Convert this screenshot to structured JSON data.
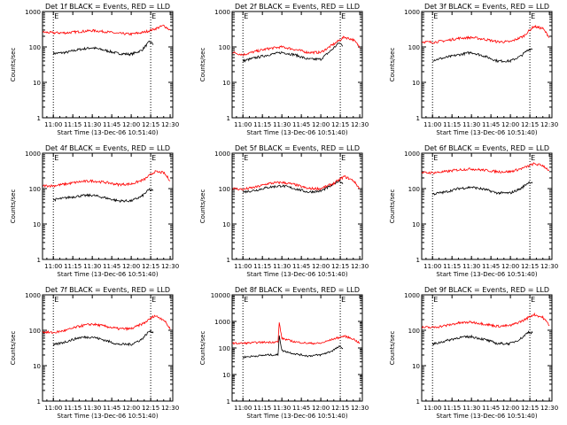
{
  "figure": {
    "x_tick_labels": [
      "11:00",
      "11:15",
      "11:30",
      "11:45",
      "12:00",
      "12:15",
      "12:30"
    ],
    "xlabel": "Start Time (13-Dec-06 10:51:40)",
    "ylabel": "Counts/sec",
    "marker_labels": [
      "E",
      "E"
    ],
    "colors": {
      "events": "#000000",
      "lld": "#ff0000",
      "axes": "#000000"
    }
  },
  "chart_data": [
    {
      "type": "line",
      "title": "Det 1f BLACK = Events, RED = LLD",
      "xlabel": "Start Time (13-Dec-06 10:51:40)",
      "ylabel": "Counts/sec",
      "y_scale": "log",
      "ylim": [
        1,
        1000
      ],
      "y_ticks": [
        1,
        10,
        100,
        1000
      ],
      "y_tick_labels": [
        "1",
        "10",
        "100",
        "1000"
      ],
      "xlim": [
        "10:51:40",
        "12:32:00"
      ],
      "marker_times": [
        "11:00",
        "12:15"
      ],
      "series": [
        {
          "name": "BLACK = Events",
          "color": "#000000",
          "x": [
            "11:00",
            "11:10",
            "11:20",
            "11:30",
            "11:40",
            "11:50",
            "12:00",
            "12:08",
            "12:14",
            "12:17"
          ],
          "values": [
            65,
            70,
            85,
            95,
            80,
            65,
            62,
            80,
            140,
            120
          ]
        },
        {
          "name": "RED = LLD",
          "color": "#ff0000",
          "x": [
            "10:52",
            "11:00",
            "11:10",
            "11:20",
            "11:30",
            "11:40",
            "11:50",
            "12:00",
            "12:10",
            "12:18",
            "12:25",
            "12:30"
          ],
          "values": [
            260,
            250,
            250,
            270,
            290,
            270,
            240,
            230,
            260,
            320,
            400,
            300
          ]
        }
      ]
    },
    {
      "type": "line",
      "title": "Det 2f BLACK = Events, RED = LLD",
      "xlabel": "Start Time (13-Dec-06 10:51:40)",
      "ylabel": "Counts/sec",
      "y_scale": "log",
      "ylim": [
        1,
        1000
      ],
      "y_ticks": [
        1,
        10,
        100,
        1000
      ],
      "y_tick_labels": [
        "1",
        "10",
        "100",
        "1000"
      ],
      "xlim": [
        "10:51:40",
        "12:32:00"
      ],
      "marker_times": [
        "11:00",
        "12:15"
      ],
      "series": [
        {
          "name": "BLACK = Events",
          "color": "#000000",
          "x": [
            "11:00",
            "11:10",
            "11:20",
            "11:30",
            "11:40",
            "11:50",
            "12:00",
            "12:08",
            "12:14",
            "12:17"
          ],
          "values": [
            40,
            50,
            60,
            70,
            60,
            45,
            45,
            80,
            130,
            110
          ]
        },
        {
          "name": "RED = LLD",
          "color": "#ff0000",
          "x": [
            "10:52",
            "11:00",
            "11:10",
            "11:20",
            "11:30",
            "11:40",
            "11:50",
            "12:00",
            "12:10",
            "12:18",
            "12:25",
            "12:30"
          ],
          "values": [
            70,
            60,
            75,
            90,
            100,
            85,
            70,
            70,
            120,
            190,
            160,
            100
          ]
        }
      ]
    },
    {
      "type": "line",
      "title": "Det 3f BLACK = Events, RED = LLD",
      "xlabel": "Start Time (13-Dec-06 10:51:40)",
      "ylabel": "Counts/sec",
      "y_scale": "log",
      "ylim": [
        1,
        1000
      ],
      "y_ticks": [
        1,
        10,
        100,
        1000
      ],
      "y_tick_labels": [
        "1",
        "10",
        "100",
        "1000"
      ],
      "xlim": [
        "10:51:40",
        "12:32:00"
      ],
      "marker_times": [
        "11:00",
        "12:15"
      ],
      "series": [
        {
          "name": "BLACK = Events",
          "color": "#000000",
          "x": [
            "11:00",
            "11:10",
            "11:20",
            "11:30",
            "11:40",
            "11:50",
            "12:00",
            "12:08",
            "12:14",
            "12:17"
          ],
          "values": [
            42,
            50,
            60,
            70,
            55,
            40,
            40,
            55,
            85,
            90
          ]
        },
        {
          "name": "RED = LLD",
          "color": "#ff0000",
          "x": [
            "10:52",
            "11:00",
            "11:10",
            "11:20",
            "11:30",
            "11:40",
            "11:50",
            "12:00",
            "12:10",
            "12:18",
            "12:25",
            "12:30"
          ],
          "values": [
            140,
            135,
            150,
            175,
            185,
            165,
            140,
            140,
            200,
            380,
            330,
            190
          ]
        }
      ]
    },
    {
      "type": "line",
      "title": "Det 4f BLACK = Events, RED = LLD",
      "xlabel": "Start Time (13-Dec-06 10:51:40)",
      "ylabel": "Counts/sec",
      "y_scale": "log",
      "ylim": [
        1,
        1000
      ],
      "y_ticks": [
        1,
        10,
        100,
        1000
      ],
      "y_tick_labels": [
        "1",
        "10",
        "100",
        "1000"
      ],
      "xlim": [
        "10:51:40",
        "12:32:00"
      ],
      "marker_times": [
        "11:00",
        "12:15"
      ],
      "series": [
        {
          "name": "BLACK = Events",
          "color": "#000000",
          "x": [
            "11:00",
            "11:10",
            "11:20",
            "11:30",
            "11:40",
            "11:50",
            "12:00",
            "12:08",
            "12:14",
            "12:17"
          ],
          "values": [
            48,
            55,
            62,
            65,
            55,
            45,
            45,
            60,
            95,
            85
          ]
        },
        {
          "name": "RED = LLD",
          "color": "#ff0000",
          "x": [
            "10:52",
            "11:00",
            "11:10",
            "11:20",
            "11:30",
            "11:40",
            "11:50",
            "12:00",
            "12:10",
            "12:18",
            "12:25",
            "12:30"
          ],
          "values": [
            120,
            120,
            135,
            155,
            165,
            150,
            130,
            135,
            180,
            300,
            280,
            170
          ]
        }
      ]
    },
    {
      "type": "line",
      "title": "Det 5f BLACK = Events, RED = LLD",
      "xlabel": "Start Time (13-Dec-06 10:51:40)",
      "ylabel": "Counts/sec",
      "y_scale": "log",
      "ylim": [
        1,
        1000
      ],
      "y_ticks": [
        1,
        10,
        100,
        1000
      ],
      "y_tick_labels": [
        "1",
        "10",
        "100",
        "1000"
      ],
      "xlim": [
        "10:51:40",
        "12:32:00"
      ],
      "marker_times": [
        "11:00",
        "12:15"
      ],
      "series": [
        {
          "name": "BLACK = Events",
          "color": "#000000",
          "x": [
            "11:00",
            "11:10",
            "11:20",
            "11:30",
            "11:40",
            "11:50",
            "12:00",
            "12:08",
            "12:14",
            "12:17"
          ],
          "values": [
            80,
            90,
            110,
            120,
            100,
            80,
            85,
            120,
            170,
            140
          ]
        },
        {
          "name": "RED = LLD",
          "color": "#ff0000",
          "x": [
            "10:52",
            "11:00",
            "11:10",
            "11:20",
            "11:30",
            "11:40",
            "11:50",
            "12:00",
            "12:10",
            "12:18",
            "12:25",
            "12:30"
          ],
          "values": [
            100,
            95,
            110,
            140,
            150,
            130,
            100,
            100,
            140,
            220,
            170,
            100
          ]
        }
      ]
    },
    {
      "type": "line",
      "title": "Det 6f BLACK = Events, RED = LLD",
      "xlabel": "Start Time (13-Dec-06 10:51:40)",
      "ylabel": "Counts/sec",
      "y_scale": "log",
      "ylim": [
        1,
        1000
      ],
      "y_ticks": [
        1,
        10,
        100,
        1000
      ],
      "y_tick_labels": [
        "1",
        "10",
        "100",
        "1000"
      ],
      "xlim": [
        "10:51:40",
        "12:32:00"
      ],
      "marker_times": [
        "11:00",
        "12:15"
      ],
      "series": [
        {
          "name": "BLACK = Events",
          "color": "#000000",
          "x": [
            "11:00",
            "11:10",
            "11:20",
            "11:30",
            "11:40",
            "11:50",
            "12:00",
            "12:08",
            "12:14",
            "12:17"
          ],
          "values": [
            70,
            80,
            100,
            110,
            95,
            75,
            75,
            100,
            150,
            150
          ]
        },
        {
          "name": "RED = LLD",
          "color": "#ff0000",
          "x": [
            "10:52",
            "11:00",
            "11:10",
            "11:20",
            "11:30",
            "11:40",
            "11:50",
            "12:00",
            "12:10",
            "12:18",
            "12:25",
            "12:30"
          ],
          "values": [
            280,
            280,
            300,
            340,
            360,
            330,
            300,
            300,
            380,
            500,
            450,
            320
          ]
        }
      ]
    },
    {
      "type": "line",
      "title": "Det 7f BLACK = Events, RED = LLD",
      "xlabel": "Start Time (13-Dec-06 10:51:40)",
      "ylabel": "Counts/sec",
      "y_scale": "log",
      "ylim": [
        1,
        1000
      ],
      "y_ticks": [
        1,
        10,
        100,
        1000
      ],
      "y_tick_labels": [
        "1",
        "10",
        "100",
        "1000"
      ],
      "xlim": [
        "10:51:40",
        "12:32:00"
      ],
      "marker_times": [
        "11:00",
        "12:15"
      ],
      "series": [
        {
          "name": "BLACK = Events",
          "color": "#000000",
          "x": [
            "11:00",
            "11:10",
            "11:20",
            "11:30",
            "11:40",
            "11:50",
            "12:00",
            "12:08",
            "12:14",
            "12:17"
          ],
          "values": [
            38,
            48,
            62,
            65,
            52,
            40,
            40,
            55,
            95,
            90
          ]
        },
        {
          "name": "RED = LLD",
          "color": "#ff0000",
          "x": [
            "10:52",
            "11:00",
            "11:10",
            "11:20",
            "11:30",
            "11:40",
            "11:50",
            "12:00",
            "12:10",
            "12:18",
            "12:25",
            "12:30"
          ],
          "values": [
            90,
            85,
            100,
            130,
            150,
            130,
            110,
            110,
            160,
            260,
            200,
            110
          ]
        }
      ]
    },
    {
      "type": "line",
      "title": "Det 8f BLACK = Events, RED = LLD",
      "xlabel": "Start Time (13-Dec-06 10:51:40)",
      "ylabel": "Counts/sec",
      "y_scale": "log",
      "ylim": [
        1,
        10000
      ],
      "y_ticks": [
        1,
        10,
        100,
        1000,
        10000
      ],
      "y_tick_labels": [
        "1",
        "10",
        "100",
        "1000",
        "10000"
      ],
      "xlim": [
        "10:51:40",
        "12:32:00"
      ],
      "marker_times": [
        "11:00",
        "12:15"
      ],
      "series": [
        {
          "name": "BLACK = Events",
          "color": "#000000",
          "x": [
            "11:00",
            "11:10",
            "11:20",
            "11:27",
            "11:28",
            "11:30",
            "11:40",
            "11:50",
            "12:00",
            "12:08",
            "12:14",
            "12:17"
          ],
          "values": [
            45,
            50,
            55,
            55,
            300,
            80,
            60,
            50,
            55,
            75,
            110,
            100
          ]
        },
        {
          "name": "RED = LLD",
          "color": "#ff0000",
          "x": [
            "10:52",
            "11:00",
            "11:10",
            "11:20",
            "11:27",
            "11:28",
            "11:30",
            "11:40",
            "11:50",
            "12:00",
            "12:10",
            "12:18",
            "12:25",
            "12:30"
          ],
          "values": [
            150,
            150,
            160,
            165,
            170,
            900,
            230,
            170,
            150,
            150,
            220,
            280,
            220,
            150
          ]
        }
      ]
    },
    {
      "type": "line",
      "title": "Det 9f BLACK = Events, RED = LLD",
      "xlabel": "Start Time (13-Dec-06 10:51:40)",
      "ylabel": "Counts/sec",
      "y_scale": "log",
      "ylim": [
        1,
        1000
      ],
      "y_ticks": [
        1,
        10,
        100,
        1000
      ],
      "y_tick_labels": [
        "1",
        "10",
        "100",
        "1000"
      ],
      "xlim": [
        "10:51:40",
        "12:32:00"
      ],
      "marker_times": [
        "11:00",
        "12:15"
      ],
      "series": [
        {
          "name": "BLACK = Events",
          "color": "#000000",
          "x": [
            "11:00",
            "11:10",
            "11:20",
            "11:30",
            "11:40",
            "11:50",
            "12:00",
            "12:08",
            "12:14",
            "12:17"
          ],
          "values": [
            40,
            50,
            62,
            66,
            55,
            42,
            42,
            58,
            90,
            85
          ]
        },
        {
          "name": "RED = LLD",
          "color": "#ff0000",
          "x": [
            "10:52",
            "11:00",
            "11:10",
            "11:20",
            "11:30",
            "11:40",
            "11:50",
            "12:00",
            "12:10",
            "12:18",
            "12:25",
            "12:30"
          ],
          "values": [
            120,
            120,
            135,
            160,
            170,
            150,
            130,
            135,
            190,
            280,
            230,
            140
          ]
        }
      ]
    }
  ]
}
